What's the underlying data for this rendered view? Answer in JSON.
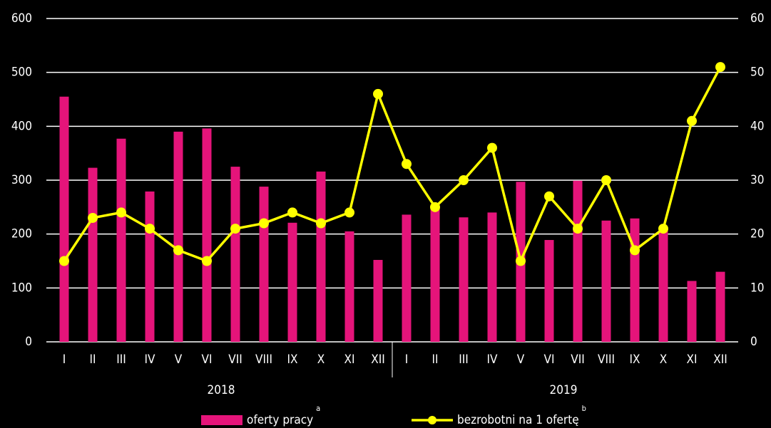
{
  "chart_data": {
    "type": "bar_line",
    "categories": [
      "I",
      "II",
      "III",
      "IV",
      "V",
      "VI",
      "VII",
      "VIII",
      "IX",
      "X",
      "XI",
      "XII",
      "I",
      "II",
      "III",
      "IV",
      "V",
      "VI",
      "VII",
      "VIII",
      "IX",
      "X",
      "XI",
      "XII"
    ],
    "groups": [
      {
        "label": "2018",
        "size": 12
      },
      {
        "label": "2019",
        "size": 12
      }
    ],
    "series": [
      {
        "name": "oferty pracy",
        "note": "a",
        "color": "#e5147a",
        "kind": "bar",
        "values": [
          455,
          323,
          377,
          279,
          390,
          396,
          325,
          288,
          221,
          316,
          205,
          152,
          236,
          255,
          231,
          240,
          297,
          189,
          299,
          225,
          229,
          210,
          113,
          130
        ]
      },
      {
        "name": "bezrobotni na 1 ofertę",
        "note": "b",
        "color": "#ffff00",
        "kind": "line",
        "axis": "y2",
        "values": [
          15,
          23,
          24,
          21,
          17,
          15,
          21,
          22,
          24,
          22,
          24,
          46,
          33,
          25,
          30,
          36,
          15,
          27,
          21,
          30,
          17,
          21,
          41,
          51
        ]
      }
    ],
    "ylim": [
      0,
      600
    ],
    "yticks": [
      0,
      100,
      200,
      300,
      400,
      500,
      600
    ],
    "y2lim": [
      0,
      60
    ],
    "y2ticks": [
      0,
      10,
      20,
      30,
      40,
      50,
      60
    ],
    "grid": true
  }
}
